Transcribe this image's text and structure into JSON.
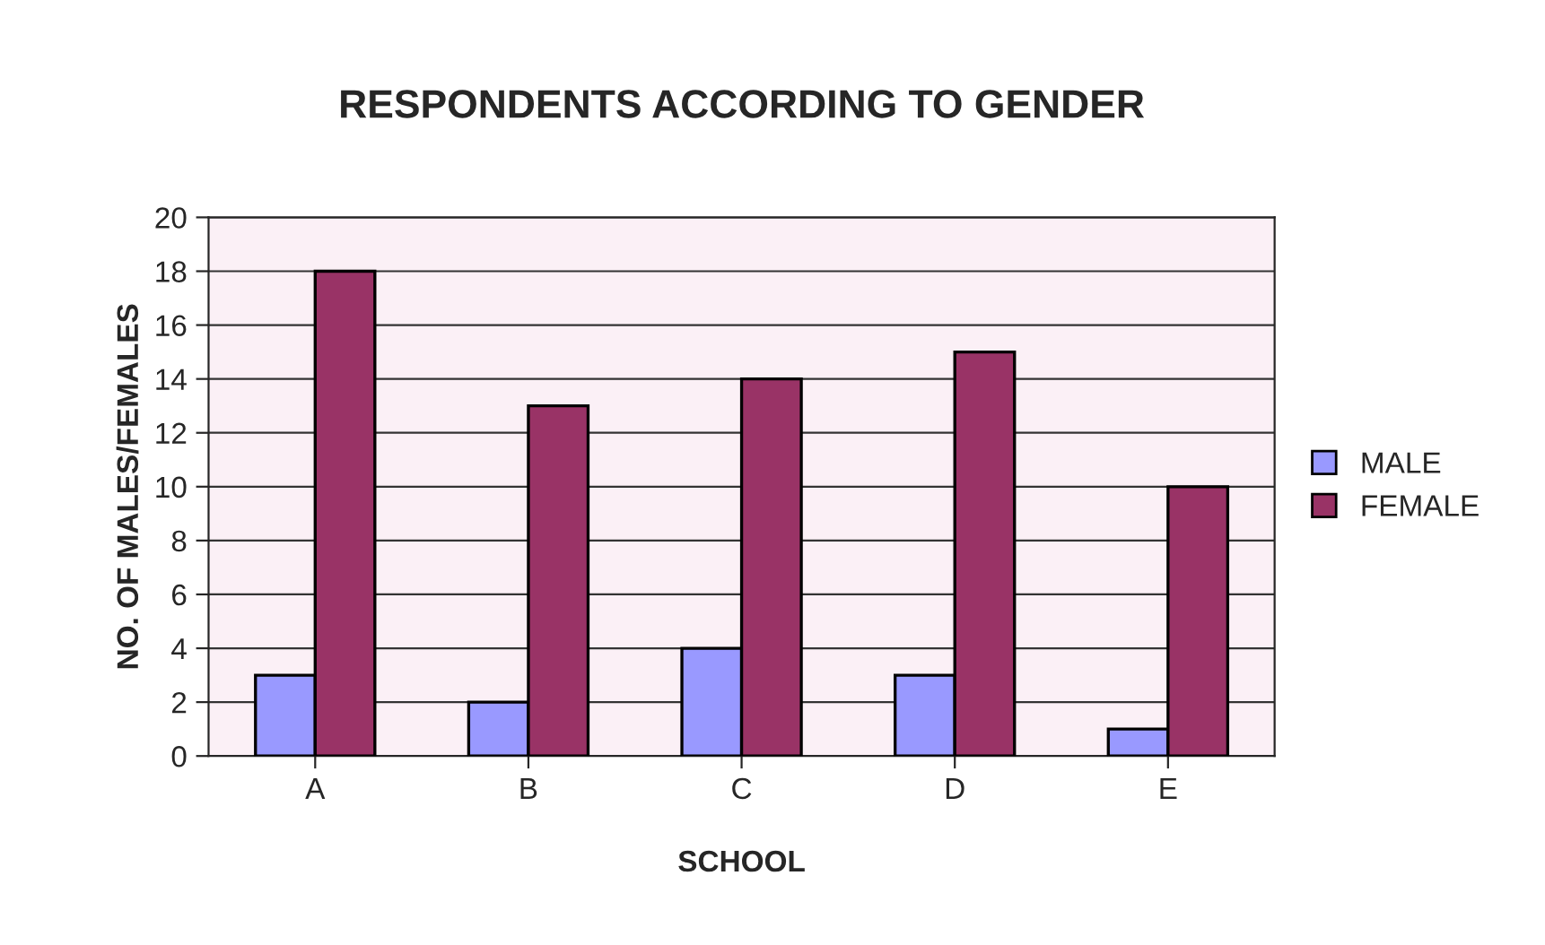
{
  "chart_data": {
    "type": "bar",
    "title": "RESPONDENTS ACCORDING TO GENDER",
    "xlabel": "SCHOOL",
    "ylabel": "NO. OF MALES/FEMALES",
    "categories": [
      "A",
      "B",
      "C",
      "D",
      "E"
    ],
    "series": [
      {
        "name": "MALE",
        "color": "#9999ff",
        "values": [
          3,
          2,
          4,
          3,
          1
        ]
      },
      {
        "name": "FEMALE",
        "color": "#993366",
        "values": [
          18,
          13,
          14,
          15,
          10
        ]
      }
    ],
    "ylim": [
      0,
      20
    ],
    "yticks": [
      0,
      2,
      4,
      6,
      8,
      10,
      12,
      14,
      16,
      18,
      20
    ],
    "grid": "y",
    "legend": "right"
  }
}
